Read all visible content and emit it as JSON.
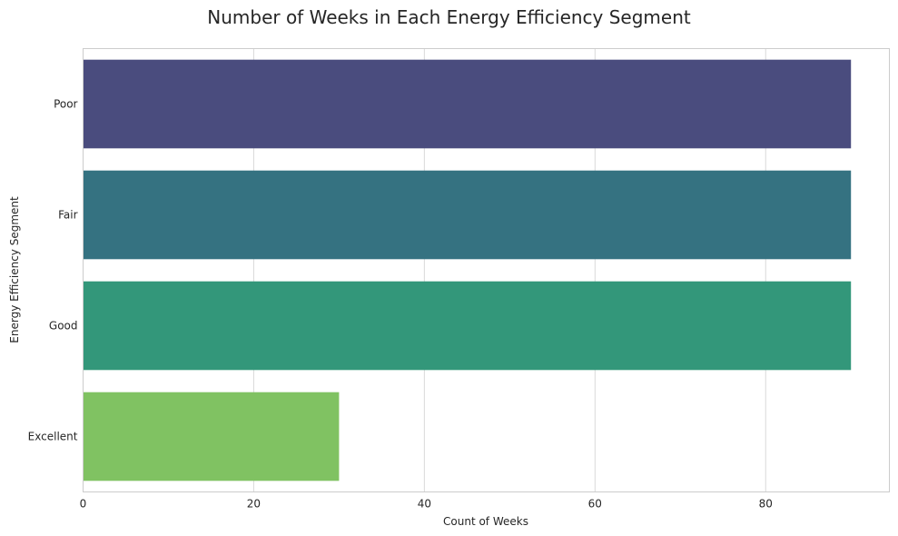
{
  "chart_data": {
    "type": "bar",
    "orientation": "horizontal",
    "title": "Number of Weeks in Each Energy Efficiency Segment",
    "xlabel": "Count of Weeks",
    "ylabel": "Energy Efficiency Segment",
    "categories": [
      "Poor",
      "Fair",
      "Good",
      "Excellent"
    ],
    "values": [
      90,
      90,
      90,
      30
    ],
    "colors": [
      "#4a4c7e",
      "#357281",
      "#33977a",
      "#80c262"
    ],
    "xlim": [
      0,
      94.5
    ],
    "xticks": [
      0,
      20,
      40,
      60,
      80
    ],
    "grid": true,
    "grid_color": "#d9d9d9",
    "frame_color": "#cccccc"
  }
}
